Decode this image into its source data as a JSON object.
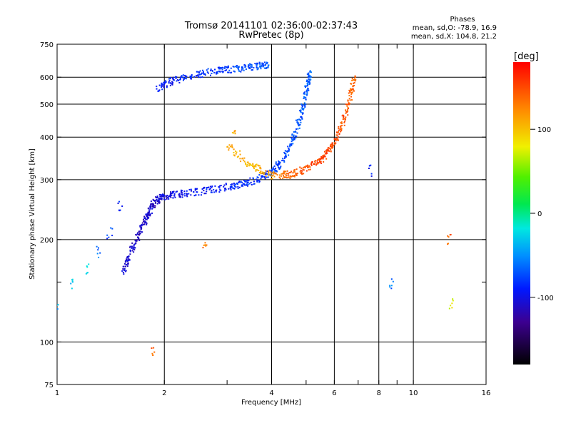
{
  "chart_data": {
    "type": "scatter",
    "title": "Tromsø 20141101 02:36:00-02:37:43",
    "subtitle": "RwPretec (8p)",
    "xlabel": "Frequency [MHz]",
    "ylabel": "Stationary phase Virtual Height [km]",
    "x_scale": "log",
    "y_scale": "log",
    "xlim": [
      1,
      16
    ],
    "ylim": [
      75,
      750
    ],
    "x_ticks": [
      1,
      2,
      4,
      6,
      8,
      10,
      16
    ],
    "x_tick_labels": [
      "1",
      "2",
      "4",
      "6",
      "8",
      "10",
      "16"
    ],
    "x_grid": [
      2,
      4,
      6,
      8,
      10
    ],
    "x_minor": [
      3,
      5,
      7,
      9
    ],
    "y_ticks": [
      75,
      100,
      200,
      300,
      400,
      500,
      600,
      750
    ],
    "y_tick_labels": [
      "75",
      "100",
      "200",
      "300",
      "400",
      "500",
      "600",
      "750"
    ],
    "y_grid": [
      100,
      200,
      300,
      400,
      500,
      600
    ],
    "y_minor": [
      150
    ],
    "grid": true,
    "stats": {
      "header": "Phases",
      "line_o": "mean, sd,O: -78.9, 16.9",
      "line_x": "mean, sd,X: 104.8, 21.2"
    },
    "colorbar": {
      "label": "[deg]",
      "min": -180,
      "max": 180,
      "ticks": [
        100,
        0,
        -100
      ],
      "tick_labels": [
        "100",
        "0",
        "-100"
      ]
    },
    "series": [
      {
        "trace": "O-mode lower curve",
        "points": [
          [
            1.52,
            160,
            -105
          ],
          [
            1.6,
            185,
            -110
          ],
          [
            1.7,
            210,
            -112
          ],
          [
            1.78,
            235,
            -108
          ],
          [
            1.85,
            255,
            -110
          ],
          [
            1.95,
            268,
            -105
          ],
          [
            2.1,
            272,
            -100
          ],
          [
            2.4,
            276,
            -95
          ],
          [
            2.8,
            283,
            -90
          ],
          [
            3.2,
            291,
            -85
          ],
          [
            3.6,
            300,
            -82
          ],
          [
            4.0,
            318,
            -80
          ],
          [
            4.3,
            345,
            -75
          ],
          [
            4.6,
            400,
            -72
          ],
          [
            4.85,
            480,
            -70
          ],
          [
            5.0,
            560,
            -68
          ],
          [
            5.1,
            620,
            -65
          ]
        ]
      },
      {
        "trace": "O-mode upper curve",
        "points": [
          [
            1.9,
            560,
            -95
          ],
          [
            2.1,
            590,
            -90
          ],
          [
            2.4,
            610,
            -85
          ],
          [
            2.8,
            630,
            -80
          ],
          [
            3.2,
            640,
            -75
          ],
          [
            3.6,
            650,
            -72
          ],
          [
            3.9,
            655,
            -70
          ]
        ]
      },
      {
        "trace": "X-mode curve",
        "points": [
          [
            3.0,
            380,
            110
          ],
          [
            3.5,
            330,
            100
          ],
          [
            4.0,
            310,
            120
          ],
          [
            4.5,
            312,
            140
          ],
          [
            5.0,
            325,
            150
          ],
          [
            5.5,
            345,
            155
          ],
          [
            5.9,
            380,
            150
          ],
          [
            6.3,
            440,
            145
          ],
          [
            6.6,
            520,
            140
          ],
          [
            6.8,
            600,
            135
          ]
        ]
      },
      {
        "trace": "Low-frequency scatter",
        "points": [
          [
            1.0,
            130,
            -40
          ],
          [
            1.1,
            150,
            -30
          ],
          [
            1.2,
            165,
            -20
          ],
          [
            1.3,
            185,
            -60
          ],
          [
            1.4,
            210,
            -80
          ],
          [
            1.5,
            250,
            -90
          ]
        ]
      },
      {
        "trace": "Isolated echoes",
        "points": [
          [
            1.85,
            95,
            140
          ],
          [
            2.6,
            190,
            130
          ],
          [
            3.1,
            420,
            110
          ],
          [
            7.6,
            320,
            -90
          ],
          [
            8.6,
            150,
            -60
          ],
          [
            12.5,
            200,
            140
          ],
          [
            12.8,
            130,
            80
          ]
        ]
      }
    ]
  }
}
